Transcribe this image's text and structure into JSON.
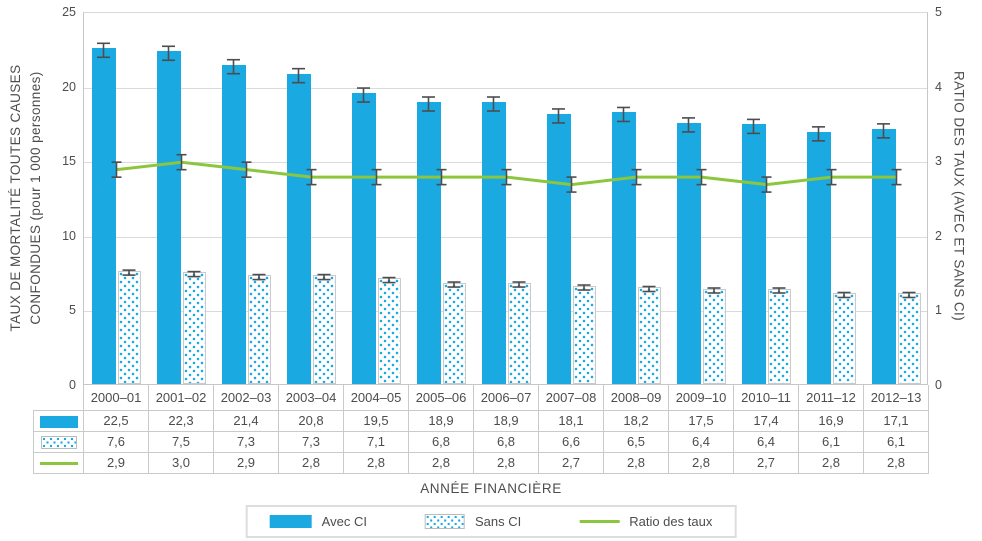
{
  "chart_data": {
    "type": "bar+line",
    "xlabel": "ANNÉE FINANCIÈRE",
    "left_axis": {
      "title_line1": "TAUX DE MORTALITÉ TOUTES CAUSES",
      "title_line2": "CONFONDUES (pour 1 000 personnes)",
      "min": 0,
      "max": 25,
      "step": 5
    },
    "right_axis": {
      "title": "RATIO DES TAUX (AVEC ET SANS CI)",
      "min": 0,
      "max": 5,
      "step": 1
    },
    "categories": [
      "2000–01",
      "2001–02",
      "2002–03",
      "2003–04",
      "2004–05",
      "2005–06",
      "2006–07",
      "2007–08",
      "2008–09",
      "2009–10",
      "2010–11",
      "2011–12",
      "2012–13"
    ],
    "series": [
      {
        "name": "Avec CI",
        "type": "bar",
        "style": "solid",
        "axis": "left",
        "error_bars": true,
        "values": [
          22.5,
          22.3,
          21.4,
          20.8,
          19.5,
          18.9,
          18.9,
          18.1,
          18.2,
          17.5,
          17.4,
          16.9,
          17.1
        ],
        "labels": [
          "22,5",
          "22,3",
          "21,4",
          "20,8",
          "19,5",
          "18,9",
          "18,9",
          "18,1",
          "18,2",
          "17,5",
          "17,4",
          "16,9",
          "17,1"
        ]
      },
      {
        "name": "Sans CI",
        "type": "bar",
        "style": "dotted",
        "axis": "left",
        "error_bars": true,
        "values": [
          7.6,
          7.5,
          7.3,
          7.3,
          7.1,
          6.8,
          6.8,
          6.6,
          6.5,
          6.4,
          6.4,
          6.1,
          6.1
        ],
        "labels": [
          "7,6",
          "7,5",
          "7,3",
          "7,3",
          "7,1",
          "6,8",
          "6,8",
          "6,6",
          "6,5",
          "6,4",
          "6,4",
          "6,1",
          "6,1"
        ]
      },
      {
        "name": "Ratio des taux",
        "type": "line",
        "style": "line",
        "axis": "right",
        "error_bars": true,
        "values": [
          2.9,
          3.0,
          2.9,
          2.8,
          2.8,
          2.8,
          2.8,
          2.7,
          2.8,
          2.8,
          2.7,
          2.8,
          2.8
        ],
        "labels": [
          "2,9",
          "3,0",
          "2,9",
          "2,8",
          "2,8",
          "2,8",
          "2,8",
          "2,7",
          "2,8",
          "2,8",
          "2,7",
          "2,8",
          "2,8"
        ]
      }
    ],
    "legend_position": "bottom",
    "grid": "horizontal",
    "colors": {
      "bar_solid": "#1ba9e2",
      "bar_dot": "#1ba9e2",
      "line": "#8cc63f",
      "error": "#4d4d4f",
      "grid": "#dadada",
      "axis": "#c6c7c8",
      "text": "#4d4d4f"
    }
  }
}
